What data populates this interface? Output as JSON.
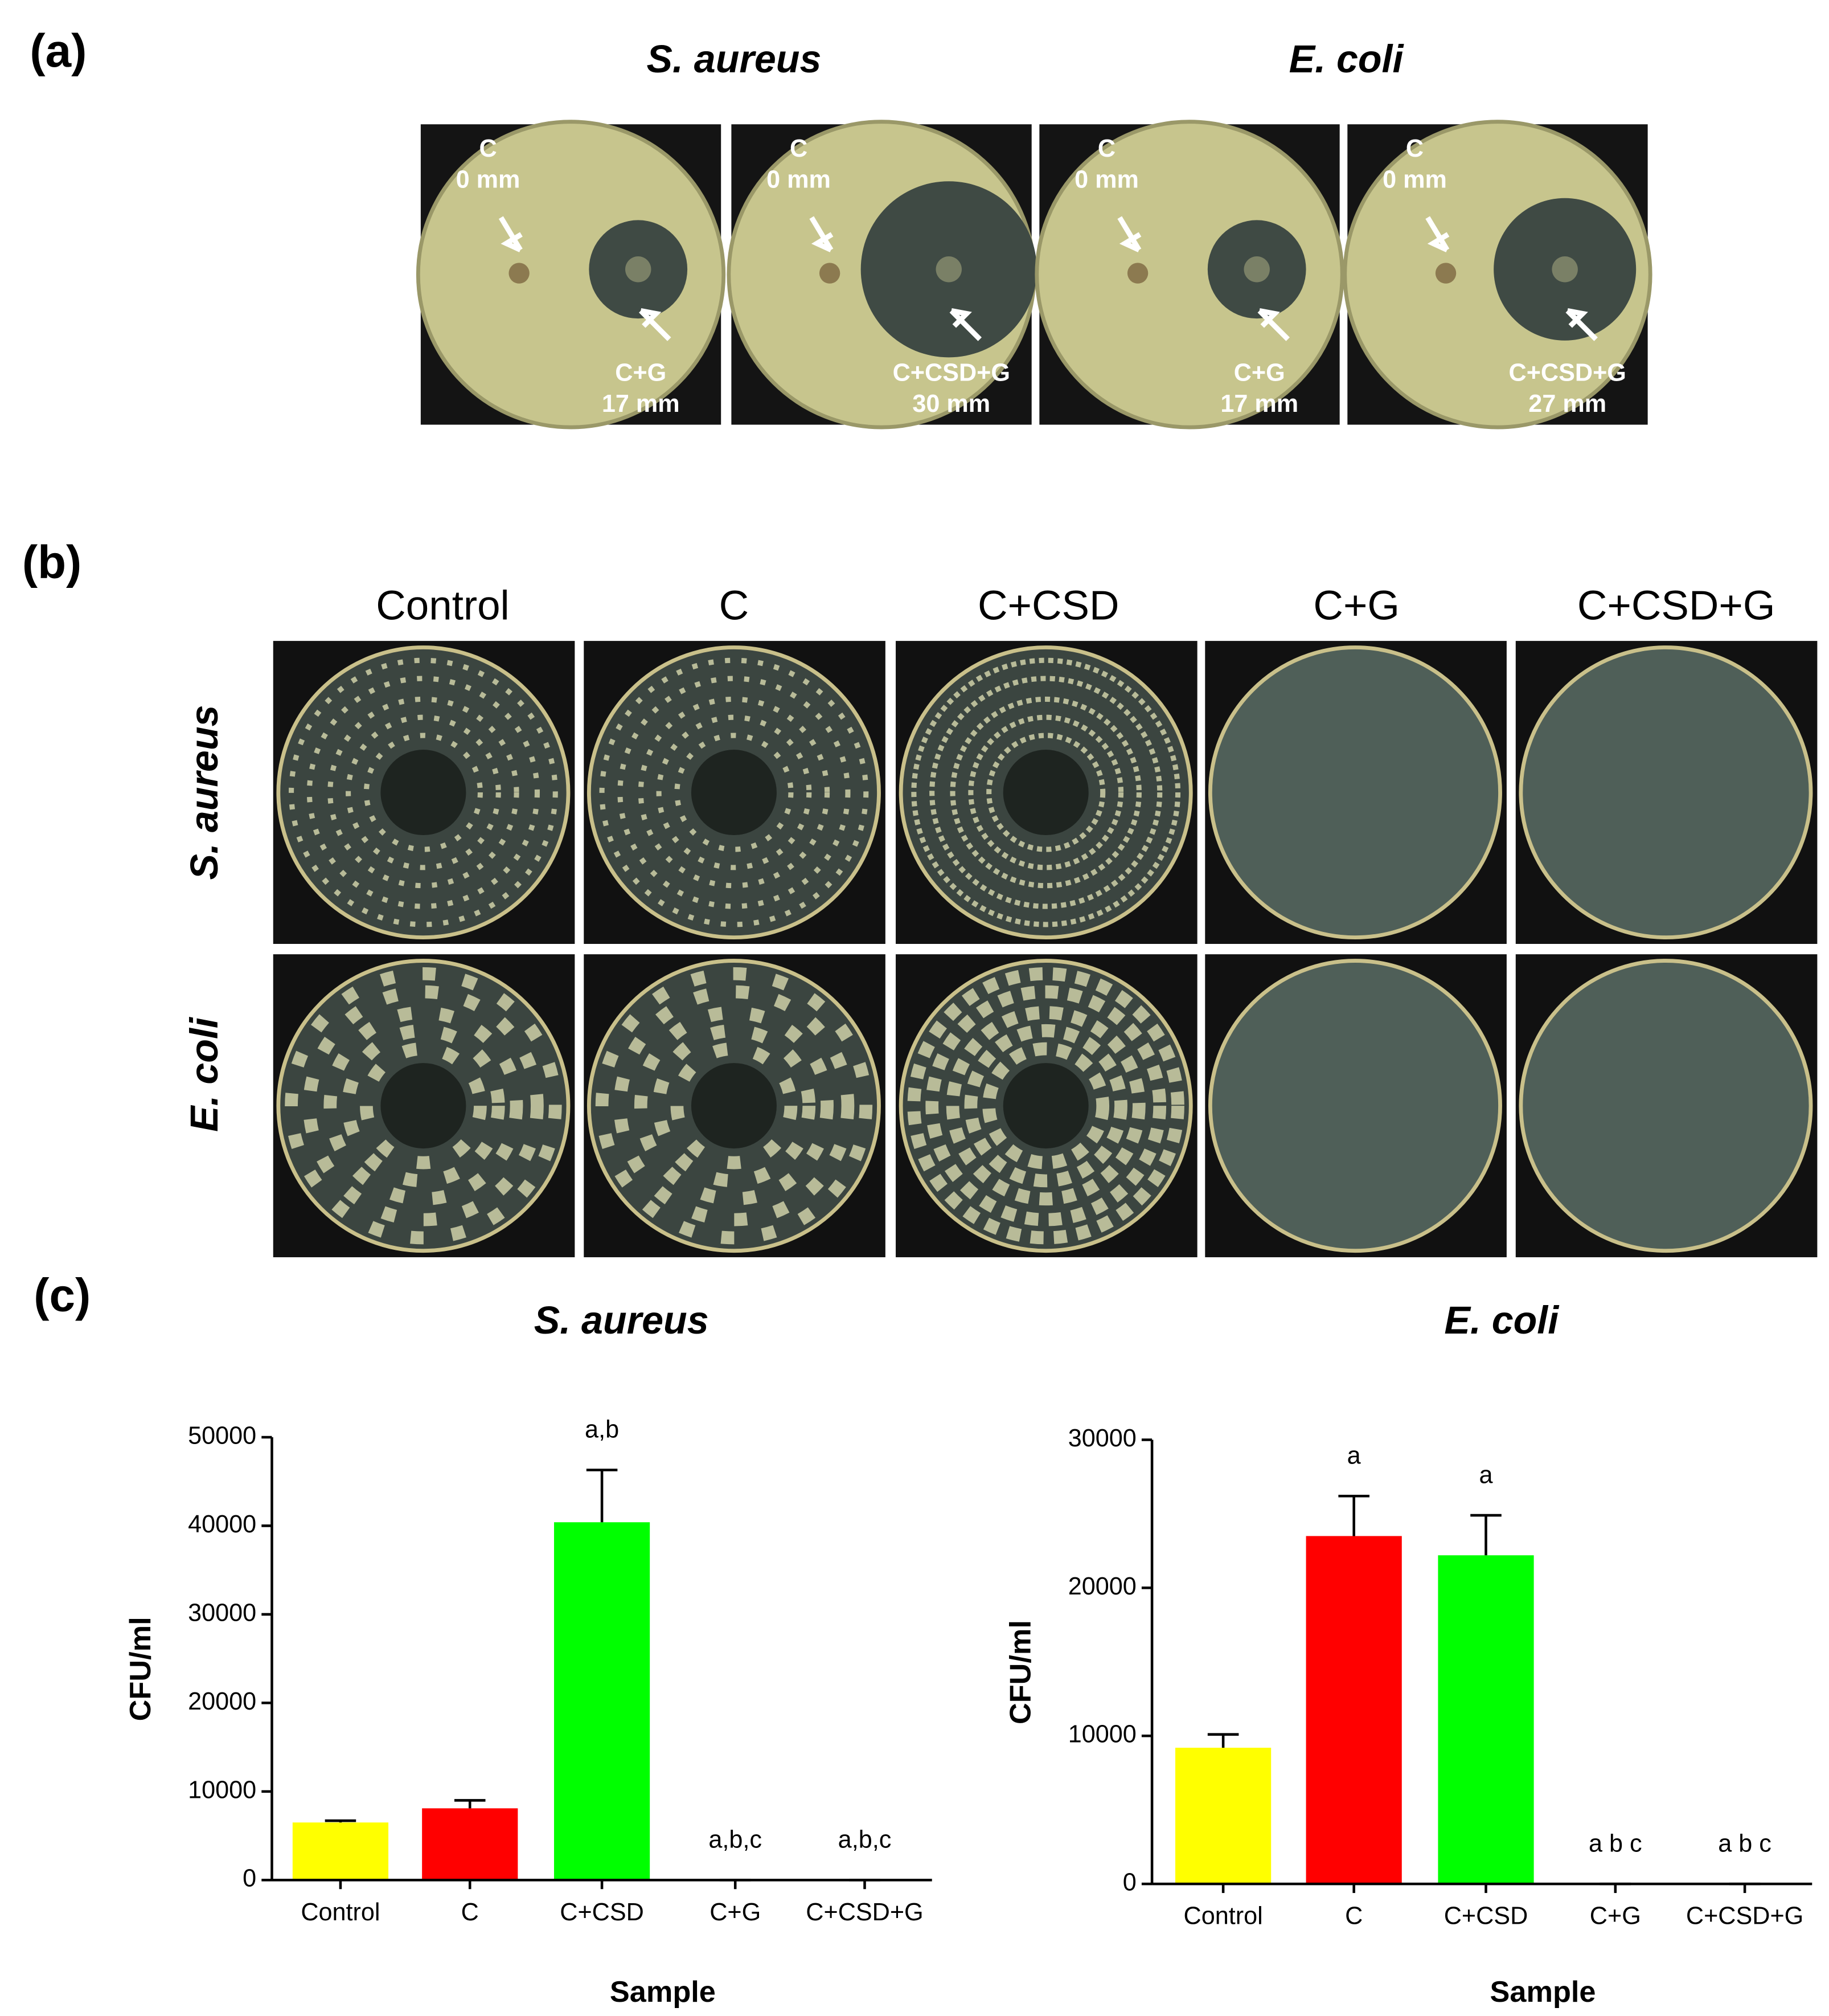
{
  "panel_labels": [
    "(a)",
    "(b)",
    "(c)"
  ],
  "panel_a": {
    "titles": [
      "S. aureus",
      "E. coli"
    ],
    "plates": [
      {
        "top": "C",
        "top_value": "0 mm",
        "bottom": "C+G",
        "bottom_value": "17 mm"
      },
      {
        "top": "C",
        "top_value": "0 mm",
        "bottom": "C+CSD+G",
        "bottom_value": "30 mm"
      },
      {
        "top": "C",
        "top_value": "0 mm",
        "bottom": "C+G",
        "bottom_value": "17 mm"
      },
      {
        "top": "C",
        "top_value": "0 mm",
        "bottom": "C+CSD+G",
        "bottom_value": "27 mm"
      }
    ]
  },
  "panel_b": {
    "columns": [
      "Control",
      "C",
      "C+CSD",
      "C+G",
      "C+CSD+G"
    ],
    "rows": [
      "S. aureus",
      "E. coli"
    ]
  },
  "chart_data": [
    {
      "type": "bar",
      "title": "S. aureus",
      "x_label": "Sample",
      "y_label": "CFU/ml",
      "categories": [
        "Control",
        "C",
        "C+CSD",
        "C+G",
        "C+CSD+G"
      ],
      "values": [
        6500,
        8100,
        40400,
        0,
        0
      ],
      "errors": [
        200,
        900,
        5900,
        0,
        0
      ],
      "annotations": [
        null,
        null,
        "a,b",
        "a,b,c",
        "a,b,c"
      ],
      "colors": [
        "#ffff00",
        "#ff0000",
        "#00ff00",
        null,
        null
      ],
      "ylim": [
        0,
        50000
      ],
      "yticks": [
        0,
        10000,
        20000,
        30000,
        40000,
        50000
      ]
    },
    {
      "type": "bar",
      "title": "E. coli",
      "x_label": "Sample",
      "y_label": "CFU/ml",
      "categories": [
        "Control",
        "C",
        "C+CSD",
        "C+G",
        "C+CSD+G"
      ],
      "values": [
        9200,
        23500,
        22200,
        0,
        0
      ],
      "errors": [
        900,
        2700,
        2700,
        0,
        0
      ],
      "annotations": [
        null,
        "a",
        "a",
        "a b c",
        "a b c"
      ],
      "colors": [
        "#ffff00",
        "#ff0000",
        "#00ff00",
        null,
        null
      ],
      "ylim": [
        0,
        30000
      ],
      "yticks": [
        0,
        10000,
        20000,
        30000
      ]
    }
  ]
}
